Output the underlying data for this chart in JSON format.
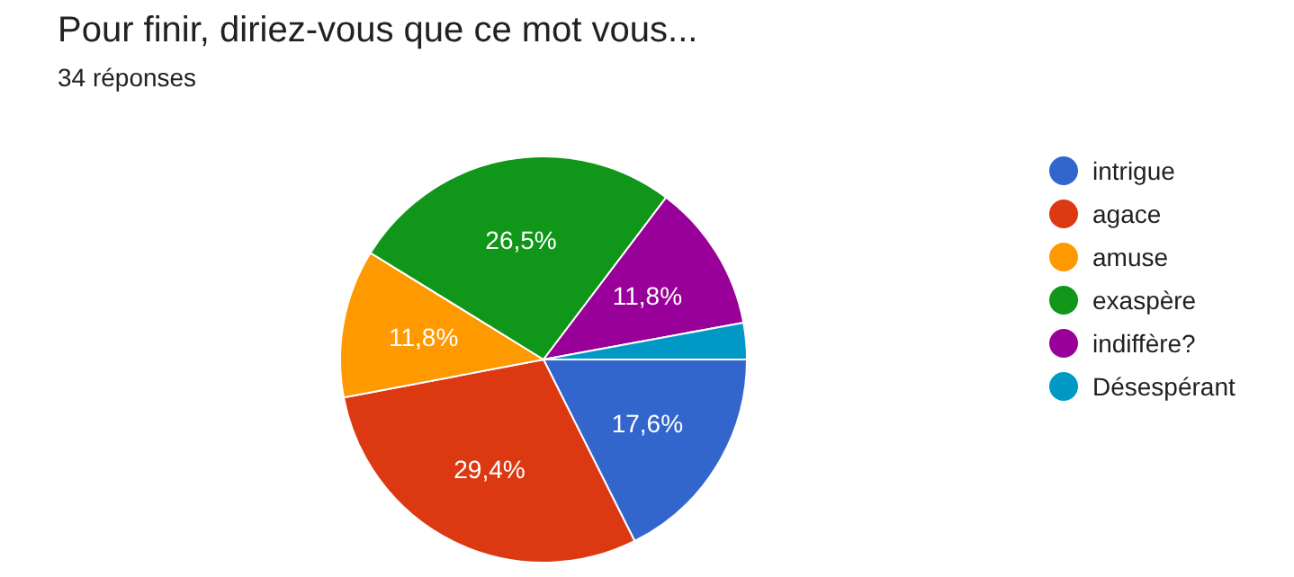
{
  "chart_data": {
    "type": "pie",
    "title": "Pour finir, diriez-vous que ce mot vous...",
    "subtitle": "34 réponses",
    "categories": [
      "intrigue",
      "agace",
      "amuse",
      "exaspère",
      "indiffère?",
      "Désespérant"
    ],
    "values": [
      17.6,
      29.4,
      11.8,
      26.5,
      11.8,
      2.9
    ],
    "colors": [
      "#3366cc",
      "#dc3912",
      "#ff9900",
      "#109618",
      "#990099",
      "#0099c6"
    ],
    "value_labels": [
      "17,6%",
      "29,4%",
      "11,8%",
      "26,5%",
      "11,8%",
      null
    ],
    "legend": "right"
  }
}
